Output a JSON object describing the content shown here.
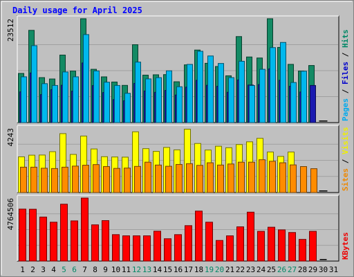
{
  "chart_data": {
    "type": "bar",
    "title": "Daily usage for April 2025",
    "days": [
      "1",
      "2",
      "3",
      "4",
      "5",
      "6",
      "7",
      "8",
      "9",
      "10",
      "11",
      "12",
      "13",
      "14",
      "15",
      "16",
      "17",
      "18",
      "19",
      "20",
      "21",
      "22",
      "23",
      "24",
      "25",
      "26",
      "27",
      "28",
      "29",
      "30",
      "31"
    ],
    "weekend_days": [
      "5",
      "6",
      "12",
      "13",
      "19",
      "20",
      "26",
      "27"
    ],
    "panels": [
      {
        "name": "hits-files-pages",
        "ytick": "23512",
        "ymax": 23512,
        "side_labels": [
          "Pages",
          "Files",
          "Hits"
        ],
        "side_colors": [
          "#00aaee",
          "#0000cc",
          "#008866"
        ],
        "series": [
          {
            "name": "Hits",
            "color": "#138a64",
            "values": [
              11130,
              20880,
              10180,
              9870,
              15280,
              11660,
              29350,
              12060,
              10350,
              9180,
              8420,
              17630,
              10740,
              10820,
              10860,
              9240,
              13070,
              16420,
              13420,
              12700,
              10590,
              19470,
              14850,
              14620,
              29450,
              17020,
              13180,
              11670,
              12920,
              0
            ]
          },
          {
            "name": "Files",
            "color": "#1a1ab0",
            "values": [
              6950,
              11230,
              6340,
              7450,
              8450,
              7120,
              13490,
              8370,
              6800,
              5200,
              4930,
              8870,
              7150,
              6850,
              7270,
              6240,
              8020,
              9560,
              8440,
              8220,
              6860,
              9660,
              8490,
              8600,
              12160,
              9570,
              8220,
              6920,
              8400,
              0
            ]
          },
          {
            "name": "Pages",
            "color": "#00b8ee",
            "values": [
              10360,
              17410,
              8810,
              8400,
              11460,
              10360,
              19920,
              11690,
              9140,
              8400,
              6630,
              13690,
              9890,
              10170,
              11720,
              8110,
              13170,
              16140,
              15080,
              13380,
              10180,
              13880,
              8380,
              12060,
              16970,
              18140,
              9070,
              11630,
              0,
              0
            ]
          }
        ]
      },
      {
        "name": "visits-sites",
        "ytick": "4243",
        "ymax": 4243,
        "side_labels": [
          "Sites",
          "Visits"
        ],
        "side_colors": [
          "#ee8800",
          "#eeee00"
        ],
        "series": [
          {
            "name": "Visits",
            "color": "#ffff00",
            "values": [
              2350,
              2460,
              2470,
              2690,
              3880,
              2510,
              3720,
              2870,
              2360,
              2340,
              2330,
              4000,
              2890,
              2710,
              2970,
              2810,
              4170,
              3230,
              2800,
              3050,
              2950,
              3160,
              3340,
              3570,
              2670,
              2380,
              2670,
              0,
              0,
              0
            ]
          },
          {
            "name": "Sites",
            "color": "#ff8c00",
            "values": [
              1670,
              1670,
              1600,
              1580,
              1670,
              1740,
              1800,
              1840,
              1710,
              1590,
              1610,
              1720,
              2000,
              1810,
              1730,
              1850,
              1900,
              1790,
              1960,
              1810,
              1880,
              2000,
              2000,
              2160,
              2060,
              1960,
              1820,
              1710,
              1570,
              0
            ]
          }
        ]
      },
      {
        "name": "kbytes",
        "ytick": "4764506",
        "ymax": 4764506,
        "side_labels": [
          "KBytes"
        ],
        "side_colors": [
          "#ee0000"
        ],
        "series": [
          {
            "name": "KBytes",
            "color": "#ff0000",
            "values": [
              3930000,
              3920000,
              3330000,
              2940000,
              4300000,
              3040000,
              5350000,
              2740000,
              3060000,
              2000000,
              1910000,
              1910000,
              1910000,
              2260000,
              1690000,
              2000000,
              2680000,
              3780000,
              2940000,
              1560000,
              1910000,
              2590000,
              3700000,
              2250000,
              2560000,
              2360000,
              2160000,
              1640000,
              2250000,
              0
            ]
          }
        ]
      }
    ]
  }
}
